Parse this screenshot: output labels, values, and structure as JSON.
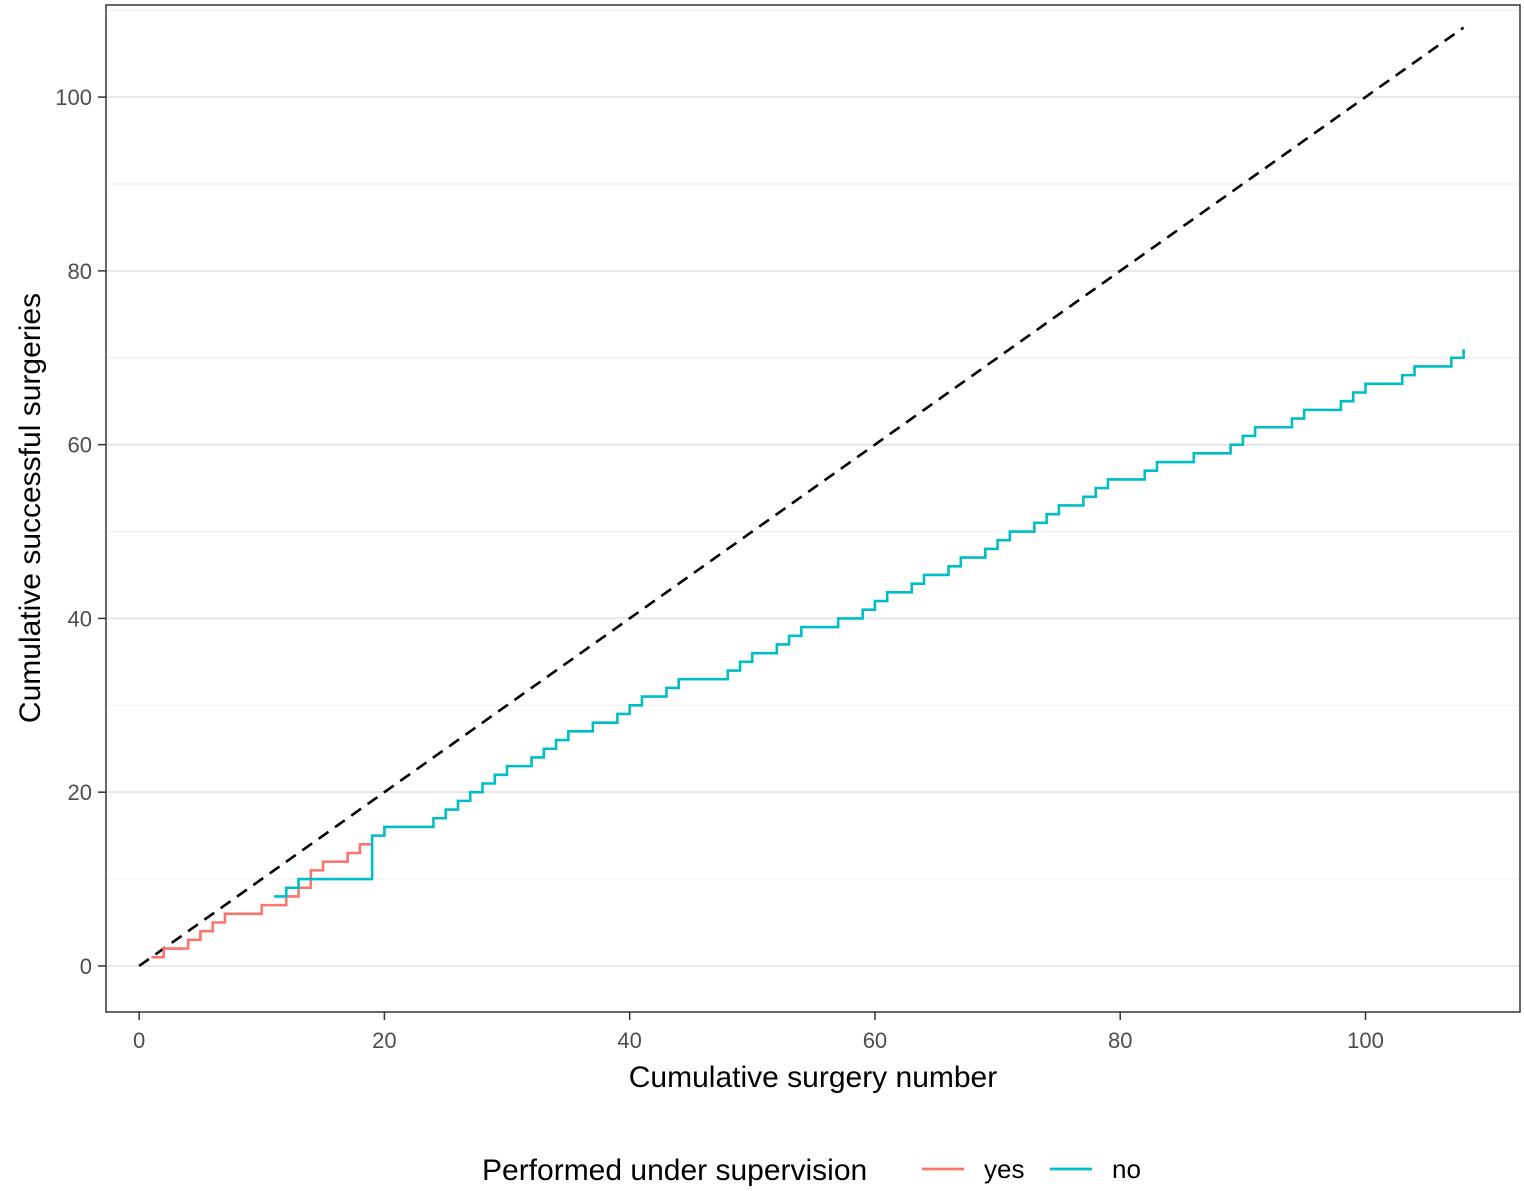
{
  "chart_data": {
    "type": "line",
    "title": "",
    "xlabel": "Cumulative surgery number",
    "ylabel": "Cumulative successful surgeries",
    "xlim": [
      -2.7,
      112.6
    ],
    "ylim": [
      -5.3,
      110.6
    ],
    "x_ticks": [
      0,
      20,
      40,
      60,
      80,
      100
    ],
    "y_ticks": [
      0,
      20,
      40,
      60,
      80,
      100
    ],
    "grid": true,
    "legend": {
      "title": "Performed under supervision",
      "position": "bottom",
      "entries": [
        {
          "label": "yes",
          "color": "#F8766D"
        },
        {
          "label": "no",
          "color": "#00BFC4"
        }
      ]
    },
    "reference_line": {
      "style": "dashed",
      "color": "#000000",
      "x": [
        0,
        108
      ],
      "y": [
        0,
        108
      ]
    },
    "series": [
      {
        "name": "yes",
        "color": "#F8766D",
        "step": true,
        "x": [
          1,
          2,
          3,
          4,
          5,
          6,
          7,
          8,
          9,
          10,
          11,
          12,
          13,
          14,
          15,
          16,
          17,
          18,
          19
        ],
        "y": [
          1,
          2,
          2,
          3,
          4,
          5,
          6,
          6,
          6,
          7,
          7,
          8,
          9,
          11,
          12,
          12,
          13,
          14,
          14
        ]
      },
      {
        "name": "no",
        "color": "#00BFC4",
        "step": true,
        "x": [
          11,
          12,
          13,
          14,
          15,
          16,
          17,
          18,
          19,
          20,
          21,
          22,
          23,
          24,
          25,
          26,
          27,
          28,
          29,
          30,
          31,
          32,
          33,
          34,
          35,
          36,
          37,
          38,
          39,
          40,
          41,
          42,
          43,
          44,
          45,
          46,
          47,
          48,
          49,
          50,
          51,
          52,
          53,
          54,
          55,
          56,
          57,
          58,
          59,
          60,
          61,
          62,
          63,
          64,
          65,
          66,
          67,
          68,
          69,
          70,
          71,
          72,
          73,
          74,
          75,
          76,
          77,
          78,
          79,
          80,
          81,
          82,
          83,
          84,
          85,
          86,
          87,
          88,
          89,
          90,
          91,
          92,
          93,
          94,
          95,
          96,
          97,
          98,
          99,
          100,
          101,
          102,
          103,
          104,
          105,
          106,
          107,
          108
        ],
        "y": [
          8,
          9,
          10,
          10,
          10,
          10,
          10,
          10,
          15,
          16,
          16,
          16,
          16,
          17,
          18,
          19,
          20,
          21,
          22,
          23,
          23,
          24,
          25,
          26,
          27,
          27,
          28,
          28,
          29,
          30,
          31,
          31,
          32,
          33,
          33,
          33,
          33,
          34,
          35,
          36,
          36,
          37,
          38,
          39,
          39,
          39,
          40,
          40,
          41,
          42,
          43,
          43,
          44,
          45,
          45,
          46,
          47,
          47,
          48,
          49,
          50,
          50,
          51,
          52,
          53,
          53,
          54,
          55,
          56,
          56,
          56,
          57,
          58,
          58,
          58,
          59,
          59,
          59,
          60,
          61,
          62,
          62,
          62,
          63,
          64,
          64,
          64,
          65,
          66,
          67,
          67,
          67,
          68,
          69,
          69,
          69,
          70,
          71
        ]
      }
    ]
  }
}
